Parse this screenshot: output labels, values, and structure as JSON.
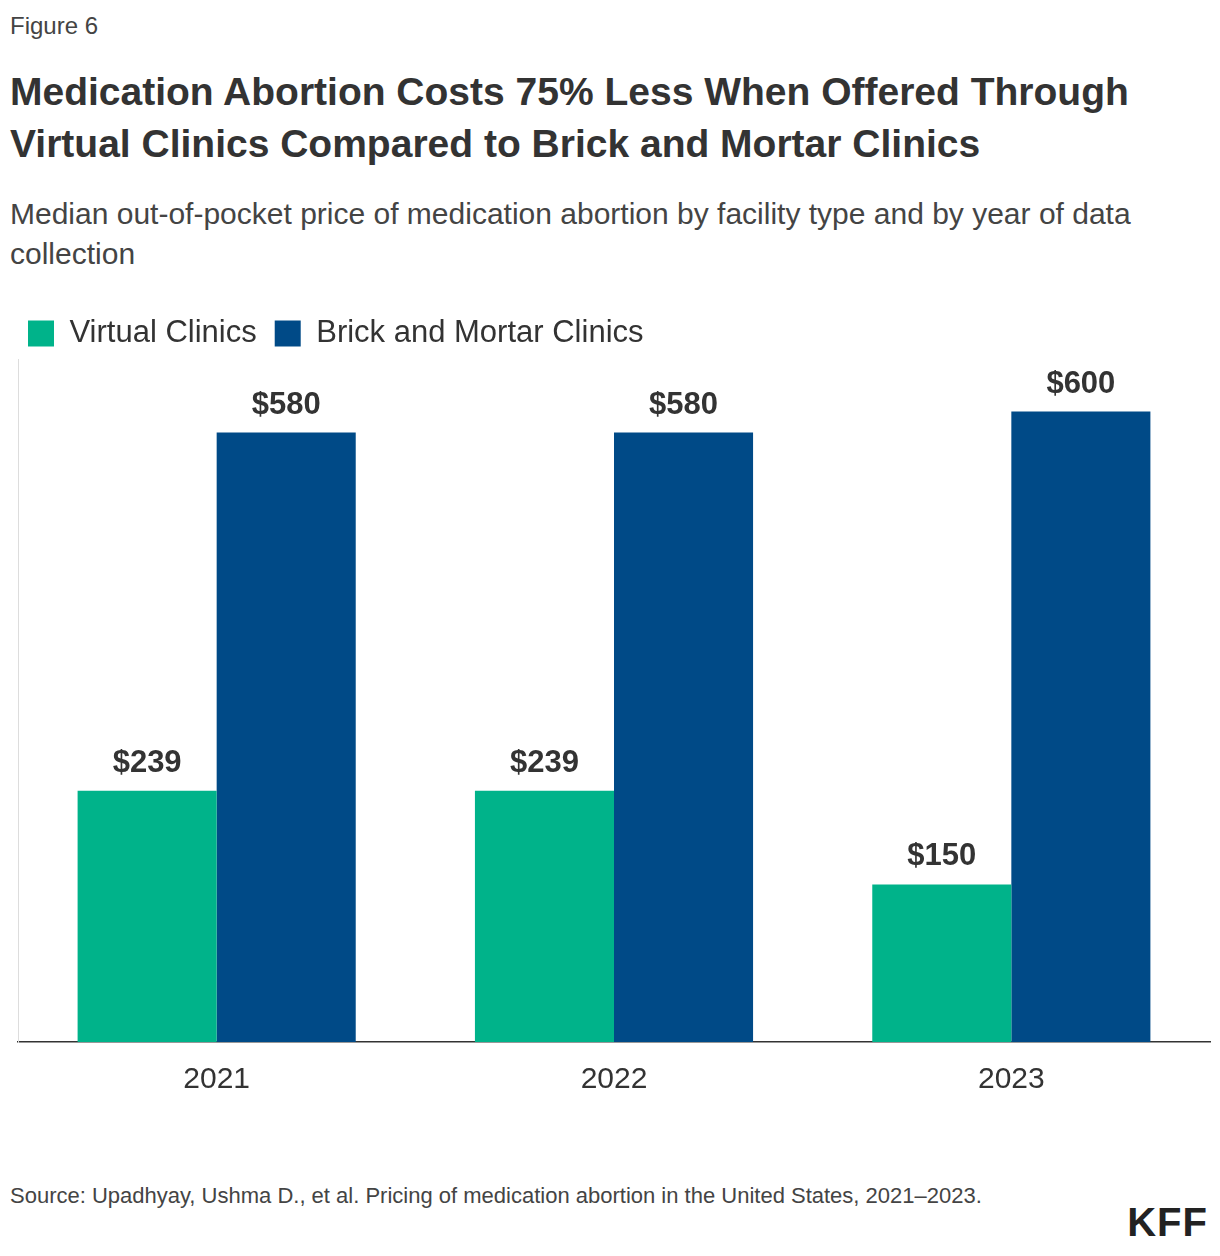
{
  "figure_label": "Figure 6",
  "source": "Source: Upadhyay, Ushma D., et al. Pricing of medication abortion in the United States, 2021–2023.",
  "brand": "KFF",
  "chart_data": {
    "type": "bar",
    "title": "Medication Abortion Costs 75% Less When Offered Through Virtual Clinics Compared to Brick and Mortar Clinics",
    "subtitle": "Median out-of-pocket price of medication abortion by facility type and by year of data collection",
    "categories": [
      "2021",
      "2022",
      "2023"
    ],
    "series": [
      {
        "name": "Virtual Clinics",
        "color": "#00b38a",
        "values": [
          239,
          239,
          150
        ],
        "value_labels": [
          "$239",
          "$239",
          "$150"
        ]
      },
      {
        "name": "Brick and Mortar Clinics",
        "color": "#004a87",
        "values": [
          580,
          580,
          600
        ],
        "value_labels": [
          "$580",
          "$580",
          "$600"
        ]
      }
    ],
    "ylim": [
      0,
      650
    ],
    "grid": false,
    "legend": "top-left",
    "data_labels": true,
    "tick_labels": "x"
  }
}
